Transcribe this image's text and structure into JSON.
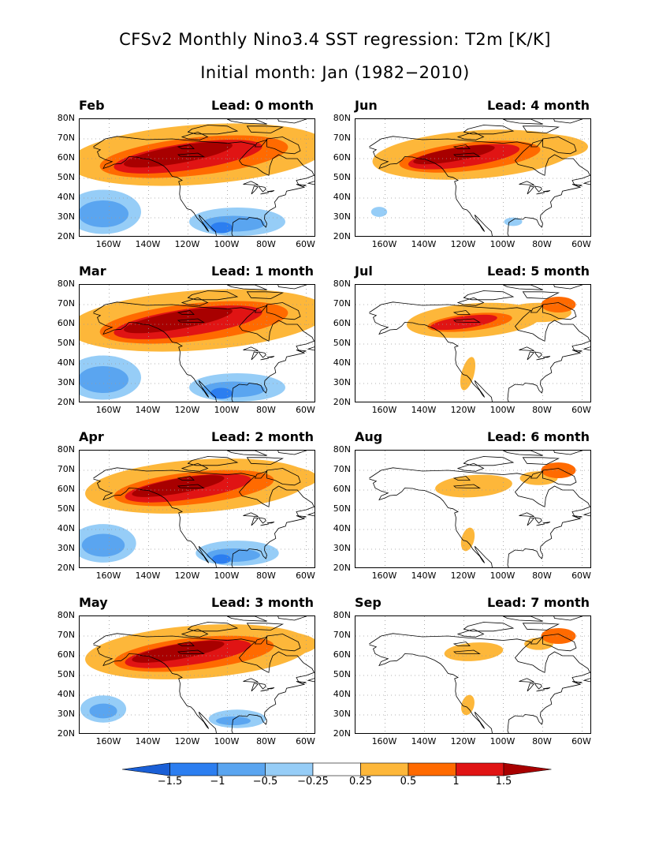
{
  "title_line1": "CFSv2 Monthly Nino3.4 SST regression: T2m [K/K]",
  "title_line2": "Initial month: Jan (1982−2010)",
  "lat_labels": [
    "80N",
    "70N",
    "60N",
    "50N",
    "40N",
    "30N",
    "20N"
  ],
  "lon_labels": [
    "160W",
    "140W",
    "120W",
    "100W",
    "80W",
    "60W"
  ],
  "colorbar": {
    "labels": [
      "−1.5",
      "−1",
      "−0.5",
      "−0.25",
      "0.25",
      "0.5",
      "1",
      "1.5"
    ],
    "colors": [
      "#1a5fd6",
      "#2c7ef0",
      "#5aa5f0",
      "#96cdf7",
      "#ffffff",
      "#fdb73a",
      "#ff6a00",
      "#e01414",
      "#a80000"
    ]
  },
  "colors": {
    "neg3": "#2c7ef0",
    "neg2": "#5aa5f0",
    "neg1": "#96cdf7",
    "pos1": "#fdb73a",
    "pos2": "#ff6a00",
    "pos3": "#e01414",
    "pos4": "#a80000"
  },
  "panels": [
    {
      "month": "Feb",
      "lead": "Lead: 0 month",
      "strength": 1.0,
      "cold": 1.0
    },
    {
      "month": "Mar",
      "lead": "Lead: 1 month",
      "strength": 1.0,
      "cold": 1.0
    },
    {
      "month": "Apr",
      "lead": "Lead: 2 month",
      "strength": 0.85,
      "cold": 0.85
    },
    {
      "month": "May",
      "lead": "Lead: 3 month",
      "strength": 0.85,
      "cold": 0.55
    },
    {
      "month": "Jun",
      "lead": "Lead: 4 month",
      "strength": 0.75,
      "cold": 0.1
    },
    {
      "month": "Jul",
      "lead": "Lead: 5 month",
      "strength": 0.45,
      "cold": 0.0
    },
    {
      "month": "Aug",
      "lead": "Lead: 6 month",
      "strength": 0.2,
      "cold": 0.0
    },
    {
      "month": "Sep",
      "lead": "Lead: 7 month",
      "strength": 0.12,
      "cold": 0.0
    }
  ]
}
